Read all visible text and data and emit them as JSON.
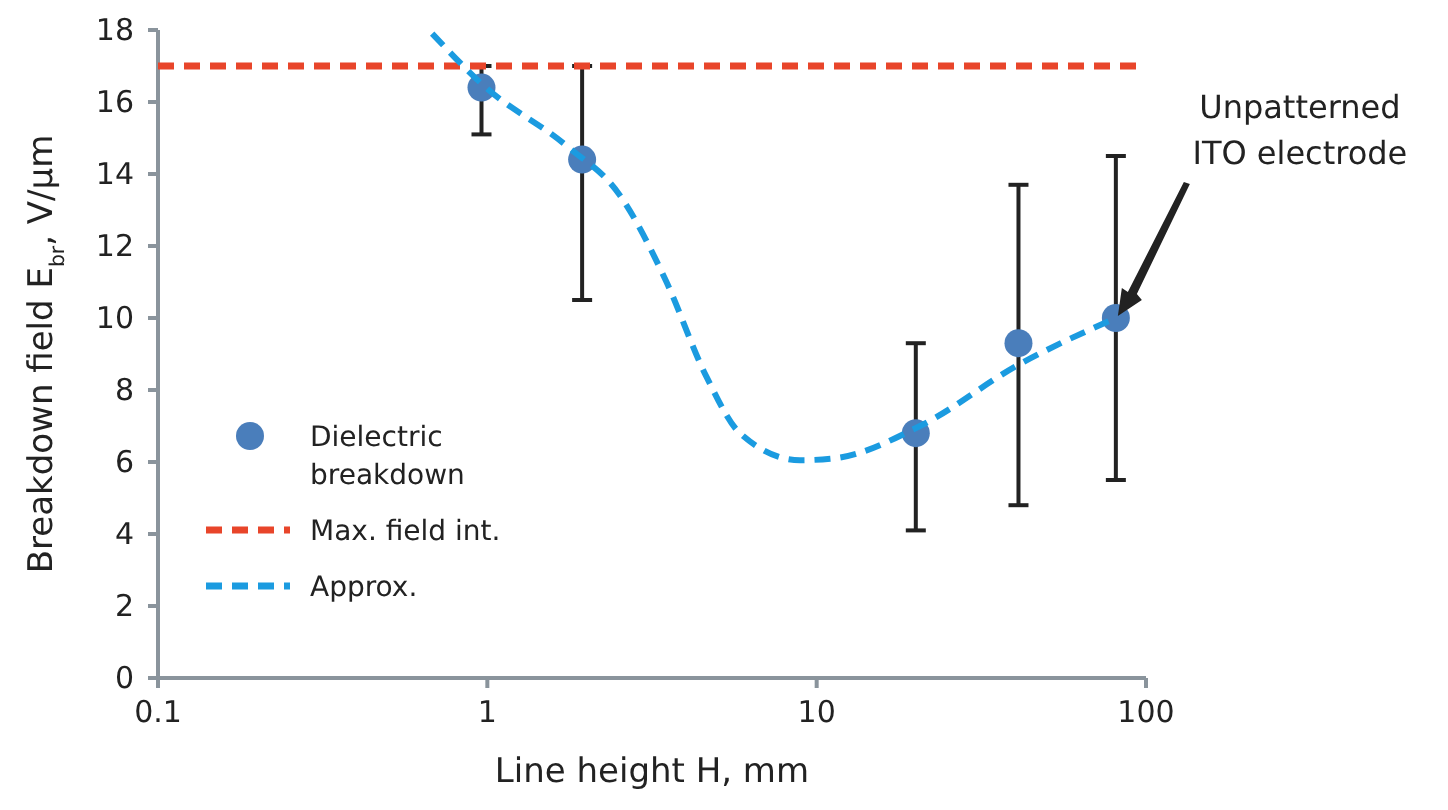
{
  "chart_data": {
    "type": "scatter",
    "xlabel": "Line height H, mm",
    "ylabel": "Breakdown field E$_{br}$, V/μm",
    "log": "x",
    "xlim": [
      0.1,
      100
    ],
    "xticks": [
      0.1,
      1,
      10,
      100
    ],
    "ylim": [
      0,
      18
    ],
    "yticks": [
      0,
      2,
      4,
      6,
      8,
      10,
      12,
      14,
      16,
      18
    ],
    "legend": "left",
    "series": [
      {
        "name": "Dielectric breakdown",
        "marker": "circle",
        "color": "#4a7ebb",
        "x": [
          0.96,
          1.94,
          20,
          41,
          81
        ],
        "values": [
          16.4,
          14.4,
          6.8,
          9.3,
          10.0
        ],
        "errors": [
          [
            15.1,
            17.0
          ],
          [
            10.5,
            17.0
          ],
          [
            4.1,
            9.3
          ],
          [
            4.8,
            13.7
          ],
          [
            5.5,
            14.5
          ]
        ]
      },
      {
        "name": "Max. field int.",
        "type": "line",
        "line_style": "dashed",
        "marker": "none",
        "color": "#e8452a",
        "x": [
          0.1,
          100
        ],
        "values": [
          17,
          17
        ]
      },
      {
        "name": "Approx.",
        "type": "line",
        "line_style": "dashed",
        "marker": "none",
        "color": "#1b9be0",
        "x": [
          0.68,
          0.99,
          1.73,
          2.53,
          3.48,
          4.61,
          5.85,
          8.9,
          11.3,
          20.6,
          41,
          81
        ],
        "values": [
          17.9,
          16.4,
          14.8,
          13.4,
          11.05,
          8.4,
          6.8,
          6.05,
          6.1,
          7.0,
          8.7,
          10.0
        ]
      }
    ],
    "annotations": [
      "Unpatterned ITO electrode"
    ]
  }
}
